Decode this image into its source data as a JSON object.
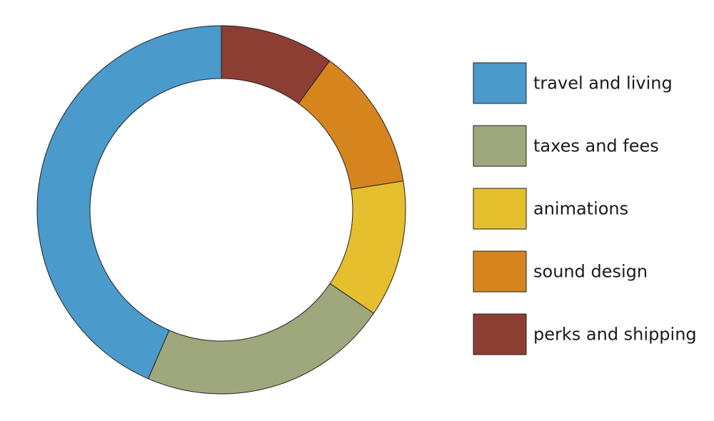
{
  "chart_data": {
    "type": "pie",
    "variant": "donut",
    "title": "",
    "legend_position": "right",
    "start_angle_deg": 0,
    "direction": "clockwise",
    "slices_order": [
      "perks and shipping",
      "sound design",
      "animations",
      "taxes and fees",
      "travel and living"
    ],
    "series": [
      {
        "name": "travel and living",
        "value": 43.5,
        "color": "#4A9ACB"
      },
      {
        "name": "taxes and fees",
        "value": 22.0,
        "color": "#9FA77C"
      },
      {
        "name": "animations",
        "value": 12.0,
        "color": "#E6BF2E"
      },
      {
        "name": "sound design",
        "value": 12.5,
        "color": "#D6851E"
      },
      {
        "name": "perks and shipping",
        "value": 10.0,
        "color": "#8D3E33"
      }
    ]
  }
}
